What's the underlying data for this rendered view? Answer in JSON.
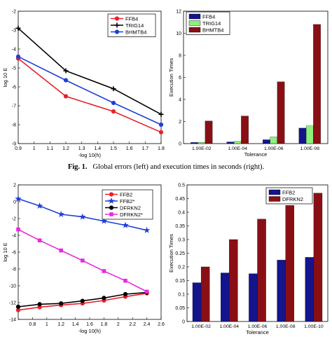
{
  "figure1_caption": {
    "label": "Fig. 1.",
    "text": "Global errors (left) and execution times in seconds (right)."
  },
  "chart_data": [
    {
      "type": "line",
      "xlabel": "-log 10(h)",
      "ylabel": "log 10 E",
      "xlim": [
        0.9,
        1.8
      ],
      "ylim": [
        -9,
        -2
      ],
      "xticks": [
        "0.9",
        "1",
        "1.1",
        "1.2",
        "1.3",
        "1.4",
        "1.5",
        "1.6",
        "1.7",
        "1.8"
      ],
      "yticks": [
        "-2",
        "-3",
        "-4",
        "-5",
        "-6",
        "-7",
        "-8",
        "-9"
      ],
      "grid": false,
      "legend": "top-right",
      "x": [
        0.9,
        1.2,
        1.5,
        1.8
      ],
      "series": [
        {
          "name": "FFB4",
          "color": "#e8202a",
          "marker": "circle",
          "values": [
            -4.5,
            -6.5,
            -7.3,
            -8.4
          ]
        },
        {
          "name": "TRIG14",
          "color": "#000000",
          "marker": "plus",
          "values": [
            -2.9,
            -5.15,
            -6.1,
            -7.45
          ]
        },
        {
          "name": "BHMTB4",
          "color": "#1e3fd8",
          "marker": "circle",
          "values": [
            -4.4,
            -5.65,
            -6.85,
            -8.0
          ]
        }
      ]
    },
    {
      "type": "bar",
      "xlabel": "Tolerance",
      "ylabel": "Execution Times",
      "ylim": [
        0,
        12
      ],
      "yticks": [
        "0",
        "2",
        "4",
        "6",
        "8",
        "10",
        "12"
      ],
      "categories": [
        "1.00E-02",
        "1.00E-04",
        "1.00E-06",
        "1.00E-08"
      ],
      "legend": "top-left",
      "series": [
        {
          "name": "FFB4",
          "color": "#14148c",
          "values": [
            0.1,
            0.15,
            0.35,
            1.4
          ]
        },
        {
          "name": "TRIG14",
          "color": "#8ef07e",
          "values": [
            0.12,
            0.2,
            0.6,
            1.6
          ]
        },
        {
          "name": "BHMTB4",
          "color": "#8a0f14",
          "values": [
            2.05,
            2.5,
            5.6,
            10.8
          ]
        }
      ]
    },
    {
      "type": "line",
      "xlabel": "-log 10(h)",
      "ylabel": "log 10 E",
      "xlim": [
        0.6,
        2.6
      ],
      "ylim": [
        -14,
        2
      ],
      "xticks": [
        "0.8",
        "1",
        "1.2",
        "1.4",
        "1.6",
        "1.8",
        "2",
        "2.2",
        "2.4",
        "2.6"
      ],
      "yticks": [
        "2",
        "0",
        "-2",
        "-4",
        "-6",
        "-8",
        "-10",
        "-12",
        "-14"
      ],
      "grid": false,
      "legend": "top-right",
      "x": [
        0.6,
        0.9,
        1.2,
        1.5,
        1.8,
        2.1,
        2.4
      ],
      "series": [
        {
          "name": "FFB2",
          "color": "#e8202a",
          "marker": "circle",
          "values": [
            -12.9,
            -12.55,
            -12.3,
            -12.1,
            -11.75,
            -11.3,
            -10.9
          ]
        },
        {
          "name": "FFB2*",
          "color": "#1e3fd8",
          "marker": "star",
          "values": [
            0.35,
            -0.5,
            -1.5,
            -1.8,
            -2.3,
            -2.8,
            -3.4
          ]
        },
        {
          "name": "DFRKN2",
          "color": "#000000",
          "marker": "circle",
          "values": [
            -12.5,
            -12.2,
            -12.1,
            -11.8,
            -11.45,
            -11.0,
            -10.8
          ]
        },
        {
          "name": "DFRKN2*",
          "color": "#e62be0",
          "marker": "square",
          "values": [
            -3.3,
            -4.6,
            -5.8,
            -7.0,
            -8.25,
            -9.4,
            -10.7
          ]
        }
      ]
    },
    {
      "type": "bar",
      "xlabel": "Tolerance",
      "ylabel": "Execution Times",
      "ylim": [
        0,
        0.5
      ],
      "yticks": [
        "0",
        "0.05",
        "0.1",
        "0.15",
        "0.2",
        "0.25",
        "0.3",
        "0.35",
        "0.4",
        "0.45",
        "0.5"
      ],
      "categories": [
        "1.00E-02",
        "1.00E-04",
        "1.00E-06",
        "1.00E-08",
        "1.00E-10"
      ],
      "legend": "top-center",
      "series": [
        {
          "name": "FFB2",
          "color": "#14148c",
          "values": [
            0.142,
            0.178,
            0.175,
            0.225,
            0.235
          ]
        },
        {
          "name": "DFRKN2",
          "color": "#8a0f14",
          "values": [
            0.2,
            0.3,
            0.375,
            0.425,
            0.47
          ]
        }
      ]
    }
  ]
}
